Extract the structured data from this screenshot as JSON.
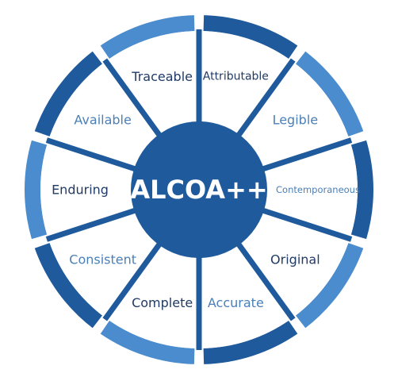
{
  "diagram": {
    "center": {
      "label": "ALCOA++",
      "color": "#1e5a9c"
    },
    "colors": {
      "dark": "#1e5a9c",
      "light": "#4a8ccd",
      "label_dark": "#1f3a64",
      "label_light": "#4a7fb8"
    },
    "segments": [
      {
        "label": "Attributable",
        "rim": "dark",
        "tone": "dark"
      },
      {
        "label": "Legible",
        "rim": "light",
        "tone": "light"
      },
      {
        "label": "Contemporaneous",
        "rim": "dark",
        "tone": "light"
      },
      {
        "label": "Original",
        "rim": "light",
        "tone": "dark"
      },
      {
        "label": "Accurate",
        "rim": "dark",
        "tone": "light"
      },
      {
        "label": "Complete",
        "rim": "light",
        "tone": "dark"
      },
      {
        "label": "Consistent",
        "rim": "dark",
        "tone": "light"
      },
      {
        "label": "Enduring",
        "rim": "light",
        "tone": "dark"
      },
      {
        "label": "Available",
        "rim": "dark",
        "tone": "light"
      },
      {
        "label": "Traceable",
        "rim": "light",
        "tone": "dark"
      }
    ]
  }
}
